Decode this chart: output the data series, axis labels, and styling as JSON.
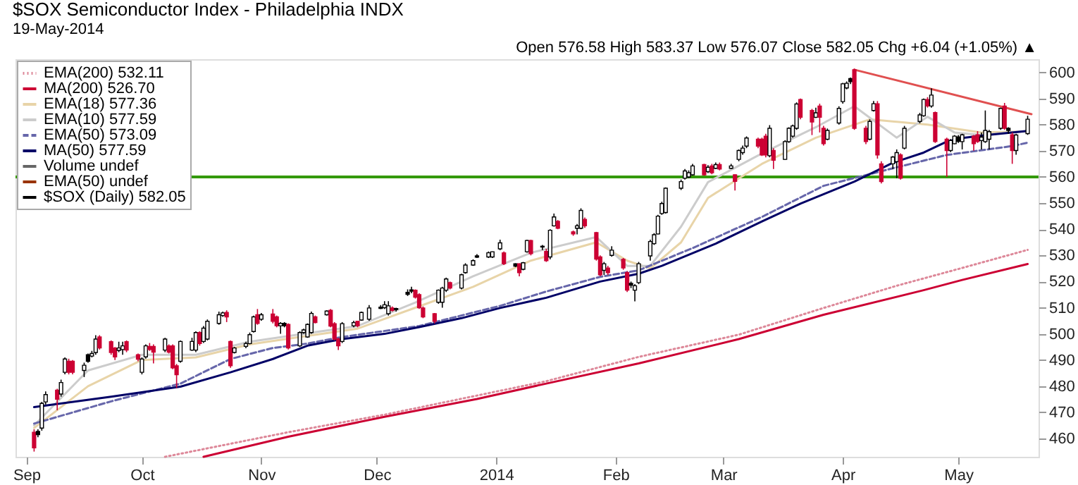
{
  "chart_data": {
    "type": "candlestick",
    "title": "$SOX Semiconductor Index - Philadelphia INDX",
    "subtitle": "19-May-2014",
    "annotations": [
      "Open 576.58 High 583.37 Low 576.07 Close 582.05 Chg +6.04 (+1.05%) ▲"
    ],
    "xlim": [
      "2013-08-31",
      "2014-05-20"
    ],
    "xticks": [
      {
        "value": "2013-09-01",
        "label": "Sep"
      },
      {
        "value": "2013-10-01",
        "label": "Oct"
      },
      {
        "value": "2013-11-01",
        "label": "Nov"
      },
      {
        "value": "2013-12-01",
        "label": "Dec"
      },
      {
        "value": "2014-01-01",
        "label": "2014"
      },
      {
        "value": "2014-02-01",
        "label": "Feb"
      },
      {
        "value": "2014-03-01",
        "label": "Mar"
      },
      {
        "value": "2014-04-01",
        "label": "Apr"
      },
      {
        "value": "2014-05-01",
        "label": "May"
      }
    ],
    "ylim": [
      453,
      605
    ],
    "yticks": [
      460,
      470,
      480,
      490,
      500,
      510,
      520,
      530,
      540,
      550,
      560,
      570,
      580,
      590,
      600
    ],
    "legend": "top left",
    "grid": false,
    "ref_lines": [
      {
        "axis": "y",
        "value": 560,
        "color": "#339900"
      }
    ],
    "series": [
      {
        "type": "line",
        "name": "EMA(200) 532.11",
        "color": "#dd8899",
        "line_style": "dotted",
        "x": [
          "2013-10-07",
          "2013-11-08",
          "2013-12-03",
          "2014-01-14",
          "2014-02-07",
          "2014-03-05",
          "2014-03-27",
          "2014-04-15",
          "2014-05-02",
          "2014-05-19"
        ],
        "values": [
          453,
          462.4,
          469.1,
          481.9,
          491.2,
          499.7,
          509.9,
          518.4,
          525.2,
          532.11
        ]
      },
      {
        "type": "line",
        "name": "MA(200) 526.70",
        "color": "#cc0033",
        "line_style": "solid",
        "x": [
          "2013-10-17",
          "2013-11-08",
          "2013-12-03",
          "2013-12-27",
          "2014-01-14",
          "2014-02-07",
          "2014-03-05",
          "2014-03-27",
          "2014-04-22",
          "2014-05-02",
          "2014-05-19"
        ],
        "values": [
          453,
          460.7,
          468.3,
          475.1,
          481,
          488.7,
          498,
          507.3,
          516.7,
          520.6,
          526.7
        ]
      },
      {
        "type": "line",
        "name": "EMA(18) 577.36",
        "color": "#e8d4a8",
        "line_style": "solid",
        "x": [
          "2013-09-03",
          "2013-09-17",
          "2013-10-01",
          "2013-10-15",
          "2013-10-29",
          "2013-11-12",
          "2013-11-26",
          "2013-12-11",
          "2013-12-26",
          "2014-01-10",
          "2014-01-27",
          "2014-02-04",
          "2014-02-10",
          "2014-02-18",
          "2014-02-25",
          "2014-03-11",
          "2014-03-25",
          "2014-04-08",
          "2014-04-23",
          "2014-05-07",
          "2014-05-19"
        ],
        "values": [
          464,
          480,
          490,
          491,
          496,
          499,
          502,
          510,
          518,
          528,
          535,
          528,
          525,
          535,
          552,
          565,
          575,
          582,
          580,
          577,
          577.36
        ]
      },
      {
        "type": "line",
        "name": "EMA(10) 577.59",
        "color": "#cccccc",
        "line_style": "solid",
        "x": [
          "2013-09-03",
          "2013-09-17",
          "2013-10-01",
          "2013-10-15",
          "2013-10-29",
          "2013-11-12",
          "2013-11-26",
          "2013-12-11",
          "2013-12-26",
          "2014-01-10",
          "2014-01-27",
          "2014-02-04",
          "2014-02-10",
          "2014-02-18",
          "2014-02-25",
          "2014-03-11",
          "2014-03-25",
          "2014-04-04",
          "2014-04-15",
          "2014-04-23",
          "2014-04-30",
          "2014-05-07",
          "2014-05-19"
        ],
        "values": [
          465,
          486,
          492,
          492,
          497,
          500,
          503,
          512,
          522,
          531,
          537,
          526,
          526,
          541,
          558,
          569,
          579,
          587,
          575,
          583,
          577,
          576,
          577.59
        ]
      },
      {
        "type": "line",
        "name": "EMA(50) 573.09",
        "color": "#6666aa",
        "line_style": "dashed",
        "x": [
          "2013-09-03",
          "2013-09-23",
          "2013-10-11",
          "2013-10-24",
          "2013-11-04",
          "2013-11-13",
          "2013-11-22",
          "2013-12-12",
          "2014-01-02",
          "2014-01-14",
          "2014-01-28",
          "2014-02-07",
          "2014-02-21",
          "2014-03-11",
          "2014-03-27",
          "2014-04-14",
          "2014-04-28",
          "2014-05-15",
          "2014-05-19"
        ],
        "values": [
          465.7,
          474.2,
          481,
          490.4,
          494.6,
          496.3,
          498.8,
          503,
          510.7,
          516.2,
          521.8,
          524.3,
          532.8,
          544.7,
          556.6,
          563.3,
          568.4,
          571.8,
          573.09
        ]
      },
      {
        "type": "line",
        "name": "MA(50) 577.59",
        "color": "#000066",
        "line_style": "solid",
        "x": [
          "2013-09-03",
          "2013-09-23",
          "2013-10-11",
          "2013-10-24",
          "2013-11-04",
          "2013-11-13",
          "2013-11-22",
          "2013-12-03",
          "2013-12-12",
          "2013-12-23",
          "2014-01-02",
          "2014-01-14",
          "2014-01-28",
          "2014-02-07",
          "2014-02-13",
          "2014-02-27",
          "2014-03-11",
          "2014-03-21",
          "2014-04-04",
          "2014-04-14",
          "2014-04-22",
          "2014-04-28",
          "2014-05-02",
          "2014-05-09",
          "2014-05-19"
        ],
        "values": [
          472,
          476,
          479.8,
          485.3,
          490.4,
          495.5,
          498,
          500,
          502.6,
          506,
          509.9,
          513.8,
          520,
          523,
          526,
          534.5,
          543,
          549.8,
          558.2,
          565.4,
          569.3,
          573.5,
          574.9,
          576.1,
          577.59
        ]
      },
      {
        "type": "bar",
        "name": "Volume undef",
        "color": "#666666"
      },
      {
        "type": "line",
        "name": "EMA(50) undef",
        "color": "#993300",
        "line_style": "solid"
      },
      {
        "type": "line",
        "color": "#e05050",
        "line_style": "solid",
        "x": [
          "2014-04-04",
          "2014-05-20"
        ],
        "values": [
          601,
          584
        ]
      },
      {
        "name": "$SOX (Daily) 582.05",
        "color": "#000000",
        "x": [
          "2013-09-03",
          "2013-09-04",
          "2013-09-05",
          "2013-09-06",
          "2013-09-09",
          "2013-09-10",
          "2013-09-11",
          "2013-09-12",
          "2013-09-13",
          "2013-09-16",
          "2013-09-17",
          "2013-09-18",
          "2013-09-19",
          "2013-09-20",
          "2013-09-23",
          "2013-09-24",
          "2013-09-25",
          "2013-09-26",
          "2013-09-27",
          "2013-09-30",
          "2013-10-01",
          "2013-10-02",
          "2013-10-03",
          "2013-10-04",
          "2013-10-07",
          "2013-10-08",
          "2013-10-09",
          "2013-10-10",
          "2013-10-11",
          "2013-10-14",
          "2013-10-15",
          "2013-10-16",
          "2013-10-17",
          "2013-10-18",
          "2013-10-21",
          "2013-10-22",
          "2013-10-23",
          "2013-10-24",
          "2013-10-25",
          "2013-10-28",
          "2013-10-29",
          "2013-10-30",
          "2013-10-31",
          "2013-11-01",
          "2013-11-04",
          "2013-11-05",
          "2013-11-06",
          "2013-11-07",
          "2013-11-08",
          "2013-11-11",
          "2013-11-12",
          "2013-11-13",
          "2013-11-14",
          "2013-11-15",
          "2013-11-18",
          "2013-11-19",
          "2013-11-20",
          "2013-11-21",
          "2013-11-22",
          "2013-11-25",
          "2013-11-26",
          "2013-11-27",
          "2013-11-29",
          "2013-12-02",
          "2013-12-03",
          "2013-12-04",
          "2013-12-05",
          "2013-12-06",
          "2013-12-09",
          "2013-12-10",
          "2013-12-11",
          "2013-12-12",
          "2013-12-13",
          "2013-12-16",
          "2013-12-17",
          "2013-12-18",
          "2013-12-19",
          "2013-12-20",
          "2013-12-23",
          "2013-12-24",
          "2013-12-26",
          "2013-12-27",
          "2013-12-30",
          "2013-12-31",
          "2014-01-02",
          "2014-01-03",
          "2014-01-06",
          "2014-01-07",
          "2014-01-08",
          "2014-01-09",
          "2014-01-10",
          "2014-01-13",
          "2014-01-14",
          "2014-01-15",
          "2014-01-16",
          "2014-01-17",
          "2014-01-21",
          "2014-01-22",
          "2014-01-23",
          "2014-01-24",
          "2014-01-27",
          "2014-01-28",
          "2014-01-29",
          "2014-01-30",
          "2014-01-31",
          "2014-02-03",
          "2014-02-04",
          "2014-02-05",
          "2014-02-06",
          "2014-02-07",
          "2014-02-10",
          "2014-02-11",
          "2014-02-12",
          "2014-02-13",
          "2014-02-14",
          "2014-02-18",
          "2014-02-19",
          "2014-02-20",
          "2014-02-21",
          "2014-02-24",
          "2014-02-25",
          "2014-02-26",
          "2014-02-27",
          "2014-02-28",
          "2014-03-03",
          "2014-03-04",
          "2014-03-05",
          "2014-03-06",
          "2014-03-07",
          "2014-03-10",
          "2014-03-11",
          "2014-03-12",
          "2014-03-13",
          "2014-03-14",
          "2014-03-17",
          "2014-03-18",
          "2014-03-19",
          "2014-03-20",
          "2014-03-21",
          "2014-03-24",
          "2014-03-25",
          "2014-03-26",
          "2014-03-27",
          "2014-03-28",
          "2014-03-31",
          "2014-04-01",
          "2014-04-02",
          "2014-04-03",
          "2014-04-04",
          "2014-04-07",
          "2014-04-08",
          "2014-04-09",
          "2014-04-10",
          "2014-04-11",
          "2014-04-14",
          "2014-04-15",
          "2014-04-16",
          "2014-04-17",
          "2014-04-21",
          "2014-04-22",
          "2014-04-23",
          "2014-04-24",
          "2014-04-25",
          "2014-04-28",
          "2014-04-29",
          "2014-04-30",
          "2014-05-01",
          "2014-05-02",
          "2014-05-05",
          "2014-05-06",
          "2014-05-07",
          "2014-05-08",
          "2014-05-09",
          "2014-05-12",
          "2014-05-13",
          "2014-05-14",
          "2014-05-15",
          "2014-05-16",
          "2014-05-19"
        ],
        "ohlc": [
          [
            462.4,
            463.5,
            455,
            456.4
          ],
          [
            462.7,
            463.5,
            460.5,
            461.5
          ],
          [
            464,
            474,
            463,
            473.4
          ],
          [
            474,
            478,
            473,
            476.8
          ],
          [
            478.5,
            479,
            470.8,
            475
          ],
          [
            477,
            482.5,
            476,
            481.4
          ],
          [
            485.3,
            491,
            484.5,
            490.4
          ],
          [
            489.5,
            490.5,
            484.5,
            485.3
          ],
          [
            489.5,
            490,
            484.5,
            485.3
          ],
          [
            486,
            489,
            483.5,
            488
          ],
          [
            492,
            492.5,
            489,
            489.5
          ],
          [
            491.5,
            493.5,
            491,
            492.5
          ],
          [
            492.9,
            499.5,
            492,
            498
          ],
          [
            498.8,
            499.5,
            494,
            494.6
          ],
          [
            497,
            497.5,
            492,
            492.9
          ],
          [
            494.6,
            495,
            490,
            491.2
          ],
          [
            493.7,
            497,
            493,
            494.6
          ],
          [
            494,
            497,
            492,
            495.4
          ],
          [
            497,
            497.5,
            493,
            493.8
          ],
          [
            492,
            492.5,
            489.5,
            490.3
          ],
          [
            485.3,
            491,
            484.5,
            490.4
          ],
          [
            491.2,
            496,
            490.5,
            495.4
          ],
          [
            495.2,
            496.5,
            493.5,
            494
          ],
          [
            495.2,
            496,
            488.7,
            493
          ],
          [
            493.8,
            498.5,
            493,
            498
          ],
          [
            495.4,
            496,
            492.5,
            493
          ],
          [
            495.4,
            496,
            486.5,
            487
          ],
          [
            487.8,
            488.5,
            479.3,
            484.4
          ],
          [
            489.5,
            497.5,
            489,
            497.1
          ],
          [
            493.8,
            498.5,
            493.5,
            497.1
          ],
          [
            493.8,
            501,
            493,
            500.5
          ],
          [
            500.5,
            501,
            495.5,
            496.3
          ],
          [
            497.1,
            503,
            496.5,
            502.2
          ],
          [
            498,
            505.5,
            497.5,
            504.8
          ],
          [
            504,
            508.5,
            503.5,
            507.3
          ],
          [
            507,
            508.5,
            506.5,
            508
          ],
          [
            508.2,
            509,
            504.5,
            506.5
          ],
          [
            497.1,
            497.5,
            487,
            487.8
          ],
          [
            492.9,
            495,
            492.5,
            494.6
          ],
          [
            495.2,
            497,
            494.5,
            496.3
          ],
          [
            496.3,
            500.5,
            496,
            499.7
          ],
          [
            500.9,
            507,
            500.5,
            506.5
          ],
          [
            507.3,
            509.5,
            503.5,
            504
          ],
          [
            505.6,
            508,
            505,
            507.3
          ],
          [
            507.6,
            509.5,
            504,
            504.8
          ],
          [
            506.5,
            507,
            502.5,
            503.1
          ],
          [
            503.1,
            504.5,
            500,
            504
          ],
          [
            504,
            504.5,
            502.5,
            503.1
          ],
          [
            503.6,
            504,
            494,
            494.6
          ],
          [
            495.4,
            501,
            495,
            500.5
          ],
          [
            500.5,
            502,
            500,
            501.5
          ],
          [
            498.8,
            504,
            498.5,
            503.6
          ],
          [
            500.5,
            508.5,
            500,
            507.8
          ],
          [
            506.5,
            507,
            504,
            504.3
          ],
          [
            507.3,
            509,
            507,
            508.7
          ],
          [
            509,
            509.5,
            502.5,
            503
          ],
          [
            503.9,
            504.5,
            497.5,
            498
          ],
          [
            498,
            498.5,
            493.8,
            495.4
          ],
          [
            497.1,
            504.5,
            496.5,
            503.9
          ],
          [
            503.1,
            505,
            502.5,
            504.3
          ],
          [
            504.8,
            505,
            502.5,
            503.1
          ],
          [
            505.3,
            508.5,
            505,
            508.2
          ],
          [
            505.6,
            511,
            505,
            509.9
          ],
          [
            510.2,
            511,
            509.5,
            509.7
          ],
          [
            510,
            512.5,
            509.5,
            511.1
          ],
          [
            507.7,
            512.5,
            507,
            510.7
          ],
          [
            509.9,
            510.5,
            508.5,
            509
          ],
          [
            509.7,
            510,
            508.5,
            509.3
          ],
          [
            515.9,
            517,
            514.5,
            515.1
          ],
          [
            516.8,
            518,
            515.5,
            516.3
          ],
          [
            516.7,
            517,
            513.5,
            514
          ],
          [
            515,
            515.5,
            509.5,
            510
          ],
          [
            509.9,
            510.5,
            506,
            506.5
          ],
          [
            507.7,
            508,
            504,
            504.8
          ],
          [
            512.1,
            517,
            511.5,
            516.7
          ],
          [
            512.1,
            518,
            510,
            517.5
          ],
          [
            516.7,
            521.5,
            516,
            521
          ],
          [
            519.6,
            520,
            517,
            517.5
          ],
          [
            517.5,
            523,
            517,
            522.6
          ],
          [
            523.4,
            527,
            523,
            526.3
          ],
          [
            526.3,
            528.5,
            526,
            528
          ],
          [
            529.8,
            530.5,
            529,
            529.3
          ],
          [
            529.4,
            531.5,
            529,
            531
          ],
          [
            529.4,
            531.5,
            529,
            531.4
          ],
          [
            532.5,
            536,
            532,
            534.8
          ],
          [
            531,
            531.5,
            526.3,
            526.8
          ],
          [
            526.8,
            527,
            525.5,
            525.9
          ],
          [
            526.8,
            527,
            522,
            523.4
          ],
          [
            524.7,
            527.5,
            524.3,
            527.2
          ],
          [
            531.4,
            536,
            531,
            535.7
          ],
          [
            535.7,
            536,
            530,
            530.7
          ],
          [
            533.5,
            534,
            532,
            533.2
          ],
          [
            531.5,
            532.5,
            527.5,
            528
          ],
          [
            529.4,
            540,
            528.5,
            539.6
          ],
          [
            541.3,
            546,
            541,
            544.7
          ],
          [
            543,
            543.5,
            540,
            540.4
          ],
          [
            539,
            539.5,
            537.5,
            538.2
          ],
          [
            540.4,
            542,
            538,
            541.3
          ],
          [
            540.4,
            548,
            540,
            547.2
          ],
          [
            543.8,
            544.5,
            540.5,
            541.3
          ],
          [
            538.7,
            539,
            528,
            528.6
          ],
          [
            529.4,
            530,
            522,
            522.6
          ],
          [
            524.3,
            527.5,
            522.5,
            526.8
          ],
          [
            525.2,
            526,
            522.5,
            523.4
          ],
          [
            530,
            533.5,
            529.5,
            532
          ],
          [
            528.5,
            529,
            524.5,
            525.2
          ],
          [
            523.4,
            524,
            516,
            516.7
          ],
          [
            519.3,
            520,
            517.5,
            518.6
          ],
          [
            516.7,
            519,
            512.4,
            518.4
          ],
          [
            519.6,
            527.5,
            519,
            526.8
          ],
          [
            529.8,
            536,
            528,
            535.3
          ],
          [
            534.5,
            538.5,
            534,
            537.9
          ],
          [
            538.2,
            545.5,
            538,
            545
          ],
          [
            546,
            550.5,
            545.5,
            549.8
          ],
          [
            546.4,
            556,
            546,
            555.7
          ],
          [
            555.7,
            559,
            555,
            558.2
          ],
          [
            559.5,
            563,
            559,
            562.3
          ],
          [
            560,
            562.5,
            559.5,
            561.6
          ],
          [
            560.8,
            565,
            560.5,
            564.2
          ],
          [
            564.7,
            565,
            560.5,
            560.8
          ],
          [
            562,
            564.5,
            561.5,
            563.7
          ],
          [
            564.2,
            565,
            561,
            561.6
          ],
          [
            563.3,
            565.5,
            563,
            564.7
          ],
          [
            564.7,
            565.5,
            562.5,
            563
          ],
          [
            563.3,
            565,
            563,
            564.2
          ],
          [
            560.8,
            561,
            554.8,
            558.3
          ],
          [
            566.7,
            570.5,
            566,
            570.1
          ],
          [
            569.3,
            572,
            568.5,
            571
          ],
          [
            571.8,
            575.5,
            571,
            574.9
          ],
          [
            574.4,
            575,
            571,
            571.8
          ],
          [
            574.4,
            575,
            568,
            568.4
          ],
          [
            575.6,
            576.5,
            567.5,
            568.4
          ],
          [
            568.1,
            579.8,
            567.5,
            578.6
          ],
          [
            570.1,
            571,
            563,
            566.4
          ],
          [
            566.7,
            574,
            566.5,
            573.5
          ],
          [
            573.5,
            579,
            573,
            578.6
          ],
          [
            575.6,
            580,
            575,
            579.5
          ],
          [
            578.6,
            588.5,
            578,
            587.9
          ],
          [
            589.6,
            590,
            582,
            582.8
          ],
          [
            585.4,
            586,
            576,
            581
          ],
          [
            582.8,
            586.5,
            582.5,
            584.5
          ],
          [
            587.1,
            588,
            577,
            582.8
          ],
          [
            578.6,
            579.5,
            572,
            572.7
          ],
          [
            574.4,
            578.5,
            574,
            577.8
          ],
          [
            580.6,
            587,
            580,
            586.2
          ],
          [
            588.8,
            596,
            588,
            595.6
          ],
          [
            594,
            596.5,
            593.5,
            595.8
          ],
          [
            597.6,
            598,
            595.5,
            596.4
          ],
          [
            601,
            601.4,
            578,
            578.6
          ],
          [
            578.6,
            579.5,
            572.5,
            573.5
          ],
          [
            574.4,
            582,
            574,
            581.2
          ],
          [
            585.4,
            589,
            585,
            588
          ],
          [
            588,
            589,
            567,
            568.4
          ],
          [
            565,
            566,
            557.5,
            558.2
          ],
          [
            565,
            568,
            563,
            567.6
          ],
          [
            565.9,
            570.5,
            559.5,
            569.3
          ],
          [
            568.4,
            569,
            559,
            559.5
          ],
          [
            571,
            579.5,
            570.5,
            578.6
          ],
          [
            581.2,
            584.5,
            580.5,
            583.7
          ],
          [
            583.4,
            590,
            583,
            589.6
          ],
          [
            589.6,
            590.5,
            586.5,
            587.1
          ],
          [
            587.1,
            593.9,
            586.5,
            591.3
          ],
          [
            584.6,
            585,
            573,
            573.5
          ],
          [
            574.4,
            575,
            560,
            570.1
          ],
          [
            570.1,
            574.5,
            569.5,
            573.9
          ],
          [
            572.7,
            576,
            572.5,
            575.6
          ],
          [
            575.3,
            576,
            573,
            573.6
          ],
          [
            573.5,
            576.5,
            570.5,
            576.1
          ],
          [
            575.6,
            576,
            570,
            572.7
          ],
          [
            576.1,
            577.5,
            573,
            573.5
          ],
          [
            573.9,
            577,
            570.5,
            575.2
          ],
          [
            573.5,
            585.4,
            573,
            577.8
          ],
          [
            574.4,
            578,
            570.5,
            577.3
          ],
          [
            578.6,
            586.5,
            578,
            586.2
          ],
          [
            587.1,
            588.3,
            578,
            578.6
          ],
          [
            578.6,
            579,
            576.5,
            577.8
          ],
          [
            576.1,
            577,
            565,
            570.1
          ],
          [
            570.1,
            576.5,
            568.5,
            576.01
          ],
          [
            576.58,
            583.37,
            576.07,
            582.05
          ]
        ],
        "colors": [
          "#cc0033",
          "#000000",
          "#000000",
          "#000000",
          "#cc0033",
          "#000000",
          "#000000",
          "#cc0033",
          "#cc0033",
          "#000000",
          "#000000",
          "#000000",
          "#000000",
          "#cc0033",
          "#cc0033",
          "#cc0033",
          "#000000",
          "#000000",
          "#cc0033",
          "#cc0033",
          "#000000",
          "#000000",
          "#cc0033",
          "#cc0033",
          "#000000",
          "#cc0033",
          "#cc0033",
          "#cc0033",
          "#000000",
          "#000000",
          "#000000",
          "#cc0033",
          "#000000",
          "#000000",
          "#000000",
          "#000000",
          "#cc0033",
          "#cc0033",
          "#000000",
          "#000000",
          "#000000",
          "#000000",
          "#cc0033",
          "#000000",
          "#cc0033",
          "#cc0033",
          "#000000",
          "#000000",
          "#cc0033",
          "#000000",
          "#000000",
          "#000000",
          "#000000",
          "#cc0033",
          "#000000",
          "#cc0033",
          "#cc0033",
          "#cc0033",
          "#000000",
          "#000000",
          "#cc0033",
          "#000000",
          "#000000",
          "#000000",
          "#000000",
          "#000000",
          "#cc0033",
          "#000000",
          "#000000",
          "#000000",
          "#cc0033",
          "#cc0033",
          "#cc0033",
          "#cc0033",
          "#000000",
          "#000000",
          "#000000",
          "#cc0033",
          "#000000",
          "#000000",
          "#000000",
          "#000000",
          "#000000",
          "#000000",
          "#000000",
          "#cc0033",
          "#000000",
          "#cc0033",
          "#000000",
          "#000000",
          "#cc0033",
          "#000000",
          "#cc0033",
          "#000000",
          "#000000",
          "#cc0033",
          "#cc0033",
          "#000000",
          "#000000",
          "#cc0033",
          "#cc0033",
          "#cc0033",
          "#000000",
          "#cc0033",
          "#000000",
          "#cc0033",
          "#cc0033",
          "#000000",
          "#000000",
          "#000000",
          "#000000",
          "#000000",
          "#000000",
          "#000000",
          "#000000",
          "#000000",
          "#000000",
          "#000000",
          "#000000",
          "#cc0033",
          "#000000",
          "#cc0033",
          "#000000",
          "#cc0033",
          "#000000",
          "#cc0033",
          "#000000",
          "#000000",
          "#000000",
          "#cc0033",
          "#cc0033",
          "#cc0033",
          "#000000",
          "#cc0033",
          "#000000",
          "#000000",
          "#000000",
          "#000000",
          "#cc0033",
          "#cc0033",
          "#000000",
          "#cc0033",
          "#cc0033",
          "#000000",
          "#000000",
          "#000000",
          "#000000",
          "#000000",
          "#cc0033",
          "#cc0033",
          "#000000",
          "#000000",
          "#cc0033",
          "#cc0033",
          "#000000",
          "#000000",
          "#cc0033",
          "#000000",
          "#000000",
          "#000000",
          "#cc0033",
          "#000000",
          "#cc0033",
          "#cc0033",
          "#000000",
          "#000000",
          "#000000",
          "#000000",
          "#cc0033",
          "#cc0033",
          "#000000",
          "#000000",
          "#000000",
          "#000000",
          "#cc0033",
          "#000000",
          "#cc0033",
          "#000000",
          "#000000"
        ]
      }
    ]
  }
}
